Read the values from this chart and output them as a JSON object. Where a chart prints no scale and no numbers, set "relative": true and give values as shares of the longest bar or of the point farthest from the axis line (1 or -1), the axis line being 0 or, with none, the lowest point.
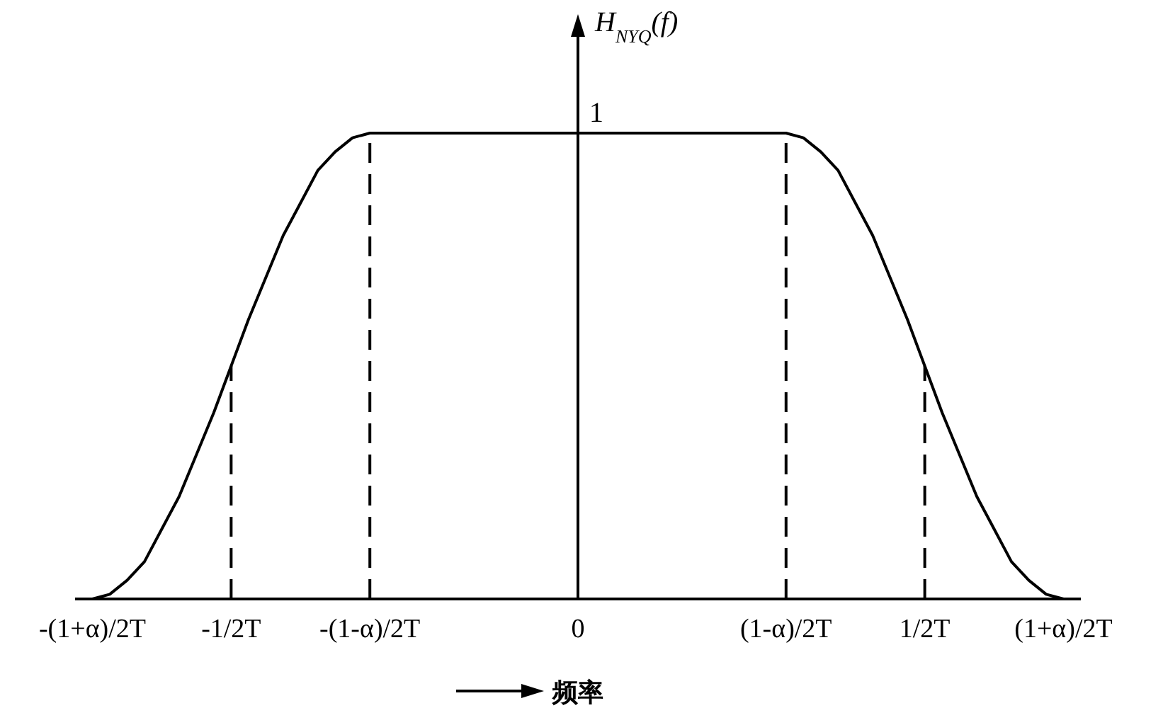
{
  "chart_data": {
    "type": "line",
    "relative": true,
    "ylabel": "H$_{NYQ}$(f)",
    "xlabel": "频率",
    "categories": [
      "-(1+α)/2T",
      null,
      null,
      null,
      null,
      null,
      null,
      null,
      "-1/2T",
      null,
      null,
      null,
      null,
      null,
      null,
      null,
      "-(1-α)/2T",
      null,
      null,
      null,
      null,
      null,
      null,
      null,
      null,
      null,
      null,
      null,
      "0",
      null,
      null,
      null,
      null,
      null,
      null,
      null,
      null,
      null,
      null,
      null,
      "(1-α)/2T",
      null,
      null,
      null,
      null,
      null,
      null,
      null,
      "1/2T",
      null,
      null,
      null,
      null,
      null,
      null,
      null,
      "(1+α)/2T"
    ],
    "series": [
      {
        "color": "#000000",
        "values": [
          0,
          0.01,
          0.04,
          0.08,
          0.15,
          0.22,
          0.31,
          0.4,
          0.5,
          0.6,
          0.69,
          0.78,
          0.85,
          0.92,
          0.96,
          0.99,
          1,
          1,
          1,
          1,
          1,
          1,
          1,
          1,
          1,
          1,
          1,
          1,
          1,
          1,
          1,
          1,
          1,
          1,
          1,
          1,
          1,
          1,
          1,
          1,
          1,
          0.99,
          0.96,
          0.92,
          0.85,
          0.78,
          0.69,
          0.6,
          0.5,
          0.4,
          0.31,
          0.22,
          0.15,
          0.08,
          0.04,
          0.01,
          0
        ]
      }
    ],
    "ref_lines": [
      {
        "axis": "x",
        "value": "-1/2T",
        "line_style": "dashed"
      },
      {
        "axis": "x",
        "value": "-(1-α)/2T",
        "line_style": "dashed"
      },
      {
        "axis": "x",
        "value": "(1-α)/2T",
        "line_style": "dashed"
      },
      {
        "axis": "x",
        "value": "1/2T",
        "line_style": "dashed"
      }
    ],
    "annotations": [
      {
        "text": "1",
        "x": "0",
        "y": 1
      }
    ]
  }
}
